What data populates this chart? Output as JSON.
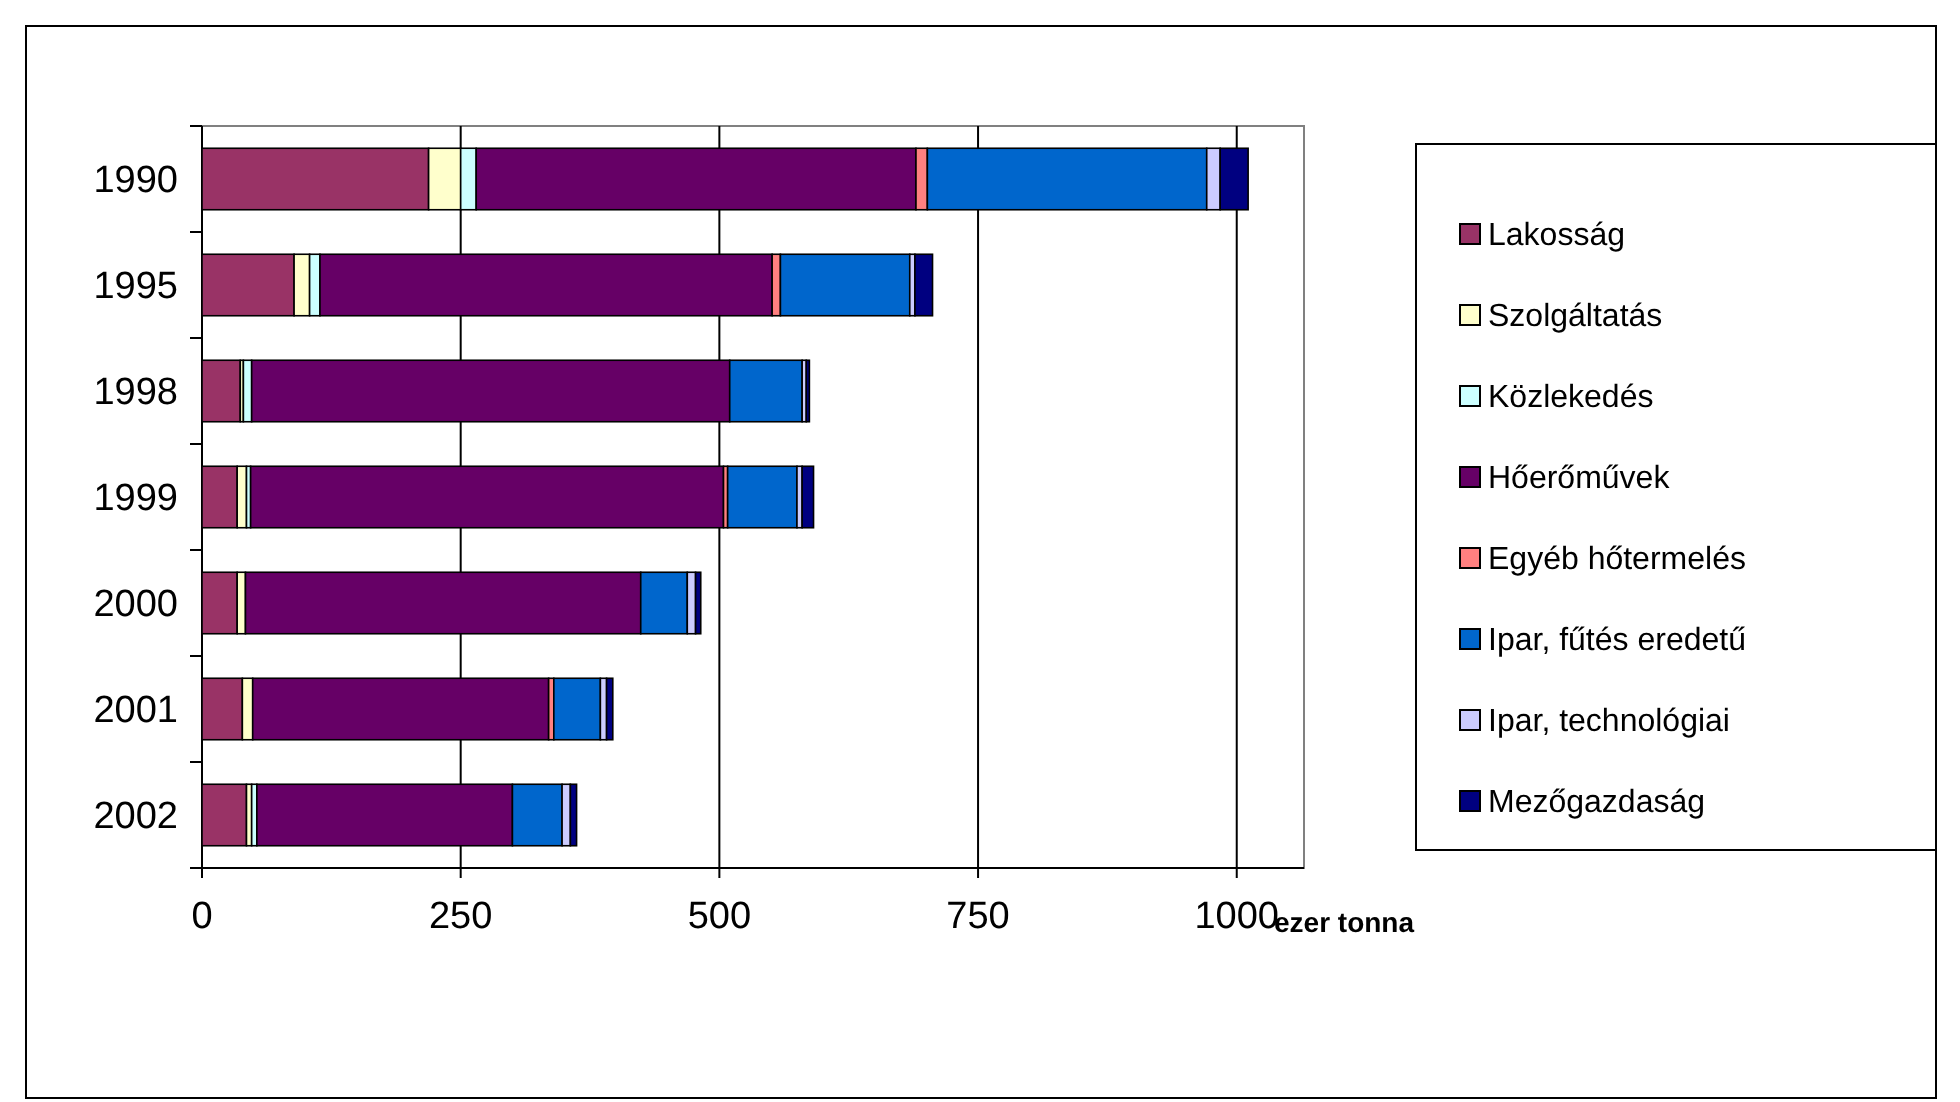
{
  "chart_data": {
    "type": "bar",
    "orientation": "horizontal",
    "stacked": true,
    "xlabel": "ezer tonna",
    "categories": [
      "1990",
      "1995",
      "1998",
      "1999",
      "2000",
      "2001",
      "2002"
    ],
    "series": [
      {
        "name": "Lakosság",
        "color": "#993366",
        "values": [
          219,
          89,
          37,
          34,
          34,
          39,
          43
        ]
      },
      {
        "name": "Szolgáltatás",
        "color": "#ffffcc",
        "values": [
          31,
          15,
          3,
          9,
          8,
          10,
          5
        ]
      },
      {
        "name": "Közlekedés",
        "color": "#ccffff",
        "values": [
          15,
          10,
          8,
          4,
          null,
          null,
          5
        ]
      },
      {
        "name": "Hőerőművek",
        "color": "#660066",
        "values": [
          425,
          437,
          462,
          457,
          382,
          286,
          247
        ]
      },
      {
        "name": "Egyéb hőtermelés",
        "color": "#ff8080",
        "values": [
          11,
          8,
          0,
          4,
          null,
          5,
          0
        ]
      },
      {
        "name": "Ipar, fűtés eredetű",
        "color": "#0066cc",
        "values": [
          270,
          125,
          70,
          67,
          45,
          45,
          48
        ]
      },
      {
        "name": "Ipar, technológiai",
        "color": "#ccccff",
        "values": [
          13,
          5,
          4,
          5,
          8,
          6,
          8
        ]
      },
      {
        "name": "Mezőgazdaság",
        "color": "#000080",
        "values": [
          27,
          17,
          3,
          11,
          5,
          6,
          6
        ]
      }
    ],
    "xlim": [
      0,
      1065
    ],
    "xticks": [
      0,
      250,
      500,
      750,
      1000
    ],
    "grid": "x",
    "legend": "right"
  }
}
